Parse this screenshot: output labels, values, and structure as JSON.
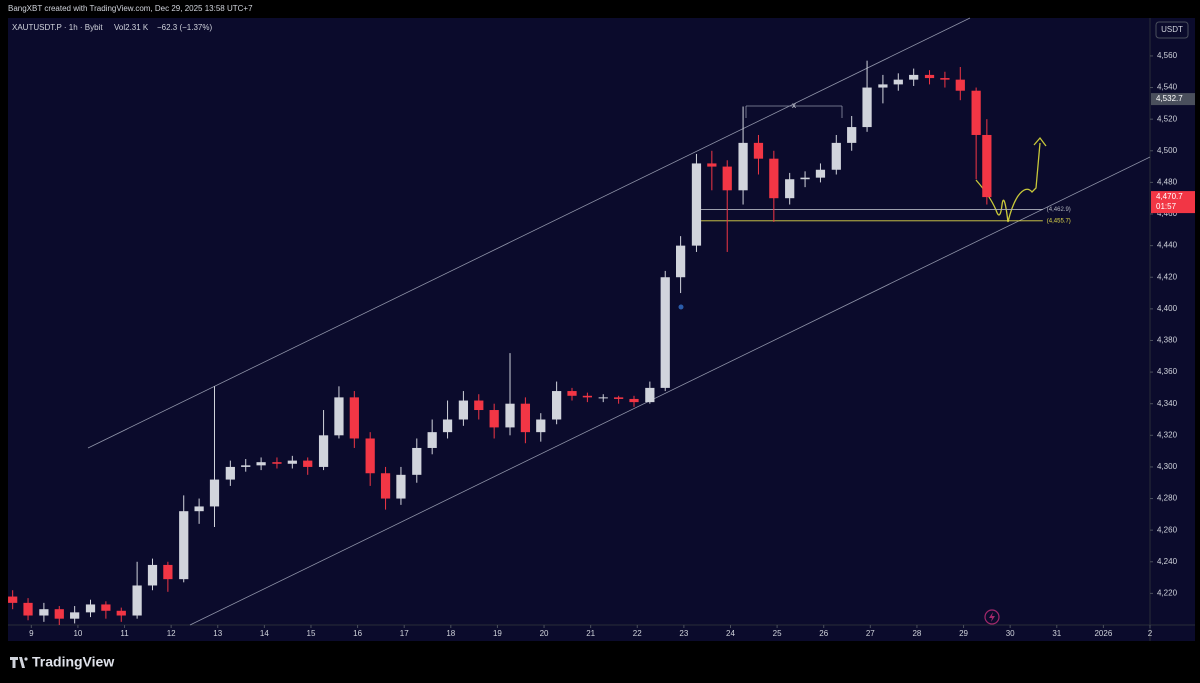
{
  "header": {
    "credit": "BangXBT created with TradingView.com, Dec 29, 2025 13:58 UTC+7"
  },
  "footer": {
    "brand": "TradingView"
  },
  "chart_data": {
    "type": "candlestick",
    "legend": {
      "symbol": "XAUTUSDT.P · 1h · Bybit",
      "volume": "Vol2.31 K",
      "change": "−62.3 (−1.37%)"
    },
    "currency": "USDT",
    "up_color": "#d1d4dc",
    "down_color": "#f23645",
    "x": [
      8.6,
      8.93,
      9.27,
      9.6,
      9.93,
      10.27,
      10.6,
      10.93,
      11.27,
      11.6,
      11.93,
      12.27,
      12.6,
      12.93,
      13.27,
      13.6,
      13.93,
      14.27,
      14.6,
      14.93,
      15.27,
      15.6,
      15.93,
      16.27,
      16.6,
      16.93,
      17.27,
      17.6,
      17.93,
      18.27,
      18.6,
      18.93,
      19.27,
      19.6,
      19.93,
      20.27,
      20.6,
      20.93,
      21.27,
      21.6,
      21.93,
      22.27,
      22.6,
      22.93,
      23.27,
      23.6,
      23.93,
      24.27,
      24.6,
      24.93,
      25.27,
      25.6,
      25.93,
      26.27,
      26.6,
      26.93,
      27.27,
      27.6,
      27.93,
      28.27,
      28.6,
      28.93,
      29.27,
      29.5
    ],
    "open": [
      4218,
      4214,
      4206,
      4210,
      4204,
      4208,
      4213,
      4209,
      4206,
      4225,
      4238,
      4229,
      4272,
      4275,
      4292,
      4300,
      4301,
      4303,
      4302,
      4304,
      4300,
      4320,
      4344,
      4318,
      4296,
      4280,
      4295,
      4312,
      4322,
      4330,
      4342,
      4336,
      4325,
      4340,
      4322,
      4330,
      4348,
      4345,
      4344,
      4344,
      4343,
      4341,
      4350,
      4420,
      4440,
      4492,
      4490,
      4475,
      4505,
      4495,
      4470,
      4482,
      4483,
      4488,
      4505,
      4515,
      4540,
      4542,
      4545,
      4548,
      4546,
      4545,
      4538,
      4510
    ],
    "high": [
      4222,
      4217,
      4214,
      4212,
      4212,
      4216,
      4215,
      4211,
      4240,
      4242,
      4240,
      4282,
      4280,
      4351,
      4304,
      4305,
      4306,
      4306,
      4307,
      4306,
      4336,
      4351,
      4348,
      4322,
      4300,
      4300,
      4318,
      4330,
      4342,
      4348,
      4346,
      4340,
      4372,
      4344,
      4334,
      4354,
      4350,
      4347,
      4346,
      4345,
      4345,
      4354,
      4424,
      4446,
      4498,
      4500,
      4494,
      4528,
      4510,
      4500,
      4486,
      4487,
      4492,
      4510,
      4522,
      4557,
      4548,
      4549,
      4552,
      4551,
      4550,
      4553,
      4540,
      4520
    ],
    "low": [
      4210,
      4203,
      4202,
      4200,
      4201,
      4205,
      4204,
      4202,
      4204,
      4222,
      4221,
      4227,
      4264,
      4262,
      4288,
      4297,
      4298,
      4299,
      4299,
      4295,
      4298,
      4318,
      4312,
      4288,
      4273,
      4276,
      4290,
      4308,
      4318,
      4326,
      4330,
      4318,
      4320,
      4315,
      4316,
      4327,
      4342,
      4341,
      4341,
      4340,
      4338,
      4340,
      4348,
      4410,
      4436,
      4475,
      4436,
      4466,
      4485,
      4455,
      4466,
      4477,
      4480,
      4485,
      4500,
      4512,
      4530,
      4538,
      4541,
      4542,
      4540,
      4532,
      4482,
      4466
    ],
    "close": [
      4214,
      4206,
      4210,
      4204,
      4208,
      4213,
      4209,
      4206,
      4225,
      4238,
      4229,
      4272,
      4275,
      4292,
      4300,
      4301,
      4303,
      4302,
      4304,
      4300,
      4320,
      4344,
      4318,
      4296,
      4280,
      4295,
      4312,
      4322,
      4330,
      4342,
      4336,
      4325,
      4340,
      4322,
      4330,
      4348,
      4345,
      4344,
      4344,
      4343,
      4341,
      4350,
      4420,
      4440,
      4492,
      4490,
      4475,
      4505,
      4495,
      4470,
      4482,
      4483,
      4488,
      4505,
      4515,
      4540,
      4542,
      4545,
      4548,
      4546,
      4545,
      4538,
      4510,
      4470.7
    ],
    "xlim": [
      8.5,
      33
    ],
    "xticks": [
      9,
      10,
      11,
      12,
      13,
      14,
      15,
      16,
      17,
      18,
      19,
      20,
      21,
      22,
      23,
      24,
      25,
      26,
      27,
      28,
      29,
      30,
      31,
      {
        "value": 32,
        "label": "2026"
      },
      {
        "value": 33,
        "label": "2"
      }
    ],
    "ylim": [
      4200,
      4584
    ],
    "yticks": [
      {
        "value": 4220,
        "label": "4,220"
      },
      {
        "value": 4240,
        "label": "4,240"
      },
      {
        "value": 4260,
        "label": "4,260"
      },
      {
        "value": 4280,
        "label": "4,280"
      },
      {
        "value": 4300,
        "label": "4,300"
      },
      {
        "value": 4320,
        "label": "4,320"
      },
      {
        "value": 4340,
        "label": "4,340"
      },
      {
        "value": 4360,
        "label": "4,360"
      },
      {
        "value": 4380,
        "label": "4,380"
      },
      {
        "value": 4400,
        "label": "4,400"
      },
      {
        "value": 4420,
        "label": "4,420"
      },
      {
        "value": 4440,
        "label": "4,440"
      },
      {
        "value": 4460,
        "label": "4,460"
      },
      {
        "value": 4480,
        "label": "4,480"
      },
      {
        "value": 4500,
        "label": "4,500"
      },
      {
        "value": 4520,
        "label": "4,520"
      },
      {
        "value": 4540,
        "label": "4,540"
      },
      {
        "value": 4560,
        "label": "4,560"
      }
    ],
    "grid": false,
    "levels": [
      {
        "value": 4462.9,
        "label": "(4,462.9)",
        "color": "#b2b5be"
      },
      {
        "value": 4455.7,
        "label": "(4,455.7)",
        "color": "#e0d84a"
      }
    ],
    "price_labels": [
      {
        "value": 4532.7,
        "label": "4,532.7",
        "color": "#4a4f5c"
      },
      {
        "value": 4470.7,
        "label": "4,470.7",
        "countdown": "01:57",
        "color": "#f23645"
      }
    ],
    "range_marker": "x"
  }
}
